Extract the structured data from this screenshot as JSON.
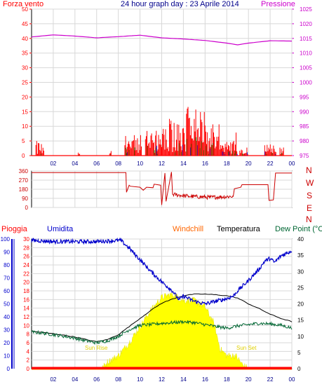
{
  "header": {
    "left": "Forza vento",
    "title": "24 hour graph day : 23 Aprile 2014",
    "right": "Pressione"
  },
  "legend": {
    "pioggia": "Pioggia",
    "umidita": "Umidita",
    "windchill": "Windchill",
    "temperatura": "Temperatura",
    "dewpoint": "Dew Point (°C"
  },
  "compass": [
    "N",
    "W",
    "S",
    "E",
    "N"
  ],
  "annotations": {
    "sunrise": "Sun Rise",
    "sunset": "Sun Set"
  },
  "colors": {
    "wind": "#ff0000",
    "gust_green": "#008000",
    "gust_blue": "#0000cc",
    "pressure": "#cc00cc",
    "direction": "#cc0000",
    "humidity": "#0000cc",
    "temperature": "#000000",
    "dewpoint": "#006633",
    "windchill": "#ff6600",
    "solar": "#ffff00",
    "rain": "#ff0000",
    "grid": "#d8d8d8"
  },
  "chart_data": [
    {
      "type": "bar",
      "name": "wind-pressure",
      "x_ticks": [
        "02",
        "04",
        "06",
        "08",
        "10",
        "12",
        "14",
        "16",
        "18",
        "20",
        "22",
        "00"
      ],
      "left_axis": {
        "label": "Forza vento",
        "ticks": [
          0,
          5,
          10,
          15,
          20,
          25,
          30,
          35,
          40,
          45,
          50
        ],
        "ylim": [
          0,
          50
        ]
      },
      "right_axis": {
        "label": "Pressione",
        "ticks": [
          975,
          980,
          985,
          990,
          995,
          1000,
          1005,
          1010,
          1015,
          1020,
          1025
        ],
        "ylim": [
          975,
          1025
        ]
      },
      "pressure": {
        "x": [
          0,
          2,
          4,
          6,
          8,
          10,
          12,
          14,
          16,
          18,
          19,
          20,
          22,
          24
        ],
        "y": [
          1015.5,
          1016.2,
          1015.8,
          1015.2,
          1015.6,
          1016.1,
          1015.2,
          1014.8,
          1014.3,
          1013.4,
          1012.8,
          1013.4,
          1014.2,
          1014.1
        ]
      },
      "wind_bursts": [
        {
          "x": [
            0.4,
            1.2
          ],
          "max": 5
        },
        {
          "x": [
            4.3,
            4.5
          ],
          "max": 2
        },
        {
          "x": [
            7.2,
            7.4
          ],
          "max": 3
        },
        {
          "x": [
            8.6,
            10.2
          ],
          "max": 7
        },
        {
          "x": [
            10.5,
            12.0
          ],
          "max": 9
        },
        {
          "x": [
            12.0,
            14.0
          ],
          "max": 13
        },
        {
          "x": [
            14.0,
            16.0
          ],
          "max": 17
        },
        {
          "x": [
            16.0,
            17.5
          ],
          "max": 11
        },
        {
          "x": [
            17.5,
            19.0
          ],
          "max": 8
        },
        {
          "x": [
            19.2,
            20.0
          ],
          "max": 3
        },
        {
          "x": [
            21.5,
            22.6
          ],
          "max": 4
        },
        {
          "x": [
            22.9,
            23.3
          ],
          "max": 3
        }
      ]
    },
    {
      "type": "line",
      "name": "wind-direction",
      "x_ticks": [
        "02",
        "04",
        "06",
        "08",
        "10",
        "12",
        "14",
        "16",
        "18",
        "20",
        "22",
        "00"
      ],
      "y_ticks": [
        0,
        90,
        180,
        270,
        360
      ],
      "ylim": [
        0,
        360
      ],
      "x": [
        0,
        8.7,
        8.75,
        9.0,
        9.1,
        10.0,
        10.3,
        10.6,
        11.2,
        11.3,
        11.9,
        12.0,
        12.3,
        12.4,
        12.9,
        13.0,
        14.5,
        16.5,
        18.6,
        18.7,
        19.3,
        19.4,
        21.8,
        21.9,
        22.3,
        22.5,
        22.9,
        23.0,
        24
      ],
      "y": [
        345,
        345,
        150,
        220,
        210,
        200,
        170,
        200,
        195,
        230,
        220,
        25,
        340,
        60,
        350,
        130,
        110,
        100,
        110,
        185,
        200,
        225,
        225,
        70,
        75,
        340,
        340,
        340,
        340
      ]
    },
    {
      "type": "line",
      "name": "temperature-humidity",
      "x_ticks": [
        "02",
        "04",
        "06",
        "08",
        "10",
        "12",
        "14",
        "16",
        "18",
        "20",
        "22",
        "00"
      ],
      "humidity_axis": {
        "label": "Umidita",
        "ticks": [
          0,
          10,
          20,
          30,
          40,
          50,
          60,
          70,
          80,
          90,
          100
        ],
        "ylim": [
          0,
          100
        ]
      },
      "rain_axis": {
        "label": "Pioggia",
        "ticks": [
          0,
          2,
          4,
          6,
          8,
          10,
          12,
          14,
          16,
          18,
          20,
          22,
          24,
          26,
          28,
          30
        ],
        "ylim": [
          0,
          30
        ]
      },
      "temp_axis": {
        "label": "Temperatura",
        "ticks": [
          0,
          5,
          10,
          15,
          20,
          25,
          30,
          35,
          40
        ],
        "ylim": [
          0,
          40
        ]
      },
      "series": [
        {
          "name": "Umidita",
          "x": [
            0,
            2,
            4,
            6,
            8.2,
            9,
            10,
            11,
            12,
            13,
            13.6,
            14,
            15,
            16,
            17,
            18,
            18.6,
            19,
            20,
            21,
            21.5,
            22,
            22.4,
            23,
            24
          ],
          "y": [
            99,
            98,
            98,
            98,
            99,
            93,
            84,
            75,
            67,
            60,
            53,
            56,
            52,
            50,
            52,
            54,
            56,
            60,
            68,
            77,
            83,
            85,
            82,
            87,
            91
          ]
        },
        {
          "name": "Temperatura",
          "x": [
            0,
            1,
            2,
            3,
            4,
            5,
            6,
            7,
            8,
            9,
            10,
            11,
            12,
            13,
            14,
            15,
            16,
            17,
            18,
            19,
            20,
            21,
            22,
            23,
            24
          ],
          "y": [
            11.5,
            11.2,
            10.8,
            10.3,
            9.8,
            9.0,
            8.3,
            9.0,
            10.5,
            13.0,
            15.5,
            18.0,
            20.2,
            21.5,
            22.5,
            23.0,
            23.0,
            22.8,
            22.5,
            21.8,
            20.0,
            18.5,
            16.8,
            15.5,
            14.5
          ]
        },
        {
          "name": "Dew Point",
          "x": [
            0,
            1,
            2,
            3,
            4,
            5,
            6,
            7,
            8,
            9,
            10,
            11,
            12,
            13,
            14,
            15,
            16,
            17,
            18,
            19,
            20,
            21,
            22,
            23,
            24
          ],
          "y": [
            11.3,
            11.0,
            10.5,
            10.0,
            9.4,
            8.6,
            8.0,
            8.6,
            10.0,
            12.0,
            13.4,
            13.6,
            14.0,
            14.2,
            14.5,
            14.2,
            13.6,
            13.0,
            12.5,
            13.2,
            13.6,
            14.0,
            13.8,
            13.4,
            12.5
          ]
        },
        {
          "name": "Solar",
          "x": [
            0,
            6.5,
            7,
            8,
            9,
            10,
            11,
            12,
            13,
            14,
            15,
            16,
            16.8,
            17.4,
            18,
            18.8,
            19.5,
            20,
            24
          ],
          "y": [
            0,
            0,
            2,
            4,
            8,
            13,
            18,
            22,
            23,
            21,
            21,
            19,
            14,
            6,
            4,
            4,
            1,
            0,
            0
          ]
        }
      ],
      "rain": [
        0,
        0
      ]
    }
  ]
}
